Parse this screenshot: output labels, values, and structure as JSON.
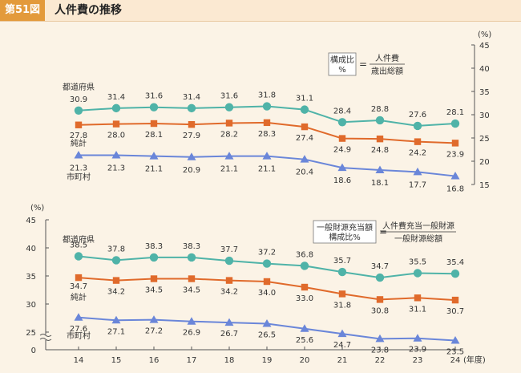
{
  "header": {
    "figure_number": "第51図",
    "title": "人件費の推移"
  },
  "colors": {
    "teal": "#4fb3a8",
    "orange": "#e06a2b",
    "blue": "#6a86d9",
    "axis": "#555555",
    "text": "#333333"
  },
  "chart_data": [
    {
      "type": "line",
      "y_unit": "(%)",
      "ylim": [
        15,
        45
      ],
      "yticks": [
        15,
        20,
        25,
        30,
        35,
        40,
        45
      ],
      "y_axis_side": "right",
      "formula": {
        "left": "構成比\n%",
        "equals": "=",
        "numerator": "人件費",
        "denominator": "歳出総額"
      },
      "x": [
        "14",
        "15",
        "16",
        "17",
        "18",
        "19",
        "20",
        "21",
        "22",
        "23",
        "24"
      ],
      "series": [
        {
          "name": "都道府県",
          "color": "#4fb3a8",
          "marker": "circle",
          "values": [
            30.9,
            31.4,
            31.6,
            31.4,
            31.6,
            31.8,
            31.1,
            28.4,
            28.8,
            27.6,
            28.1
          ]
        },
        {
          "name": "純計",
          "color": "#e06a2b",
          "marker": "square",
          "values": [
            27.8,
            28.0,
            28.1,
            27.9,
            28.2,
            28.3,
            27.4,
            24.9,
            24.8,
            24.2,
            23.9
          ]
        },
        {
          "name": "市町村",
          "color": "#6a86d9",
          "marker": "triangle",
          "values": [
            21.3,
            21.3,
            21.1,
            20.9,
            21.1,
            21.1,
            20.4,
            18.6,
            18.1,
            17.7,
            16.8
          ]
        }
      ]
    },
    {
      "type": "line",
      "y_unit": "(%)",
      "ylim": [
        0,
        45
      ],
      "yticks": [
        0,
        25,
        30,
        35,
        40,
        45
      ],
      "axis_break": true,
      "y_axis_side": "left",
      "formula": {
        "left": "一般財源充当額\n構成比%",
        "equals": "=",
        "numerator": "人件費充当一般財源",
        "denominator": "一般財源総額"
      },
      "x": [
        "14",
        "15",
        "16",
        "17",
        "18",
        "19",
        "20",
        "21",
        "22",
        "23",
        "24"
      ],
      "x_unit": "(年度)",
      "series": [
        {
          "name": "都道府県",
          "color": "#4fb3a8",
          "marker": "circle",
          "values": [
            38.5,
            37.8,
            38.3,
            38.3,
            37.7,
            37.2,
            36.8,
            35.7,
            34.7,
            35.5,
            35.4
          ]
        },
        {
          "name": "純計",
          "color": "#e06a2b",
          "marker": "square",
          "values": [
            34.7,
            34.2,
            34.5,
            34.5,
            34.2,
            34.0,
            33.0,
            31.8,
            30.8,
            31.1,
            30.7
          ]
        },
        {
          "name": "市町村",
          "color": "#6a86d9",
          "marker": "triangle",
          "values": [
            27.6,
            27.1,
            27.2,
            26.9,
            26.7,
            26.5,
            25.6,
            24.7,
            23.8,
            23.9,
            23.5
          ]
        }
      ]
    }
  ]
}
